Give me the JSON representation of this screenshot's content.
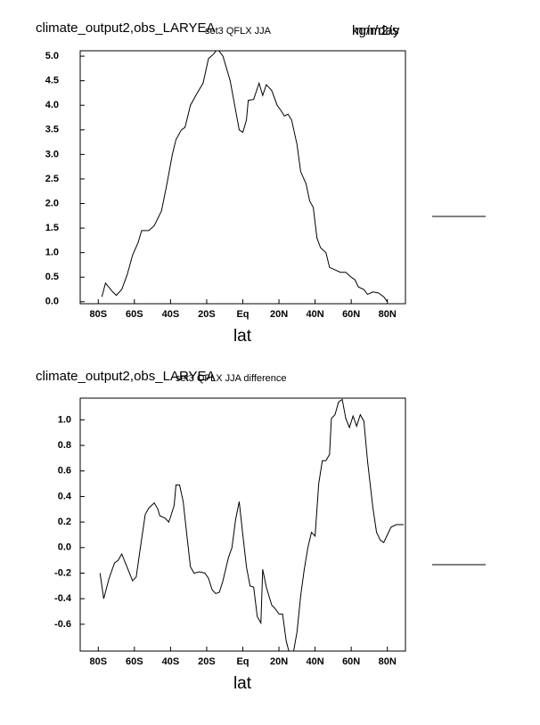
{
  "chart_data": [
    {
      "type": "line",
      "title": "climate_output2,obs_LARYEA",
      "subtitle": "set3 QFLX JJA",
      "units": [
        "mm/day",
        "kg/m2/s"
      ],
      "xlabel": "lat",
      "xlim": [
        -90,
        90
      ],
      "ylim": [
        -0.04,
        5.11
      ],
      "xticks": [
        {
          "value": -80,
          "label": "80S"
        },
        {
          "value": -60,
          "label": "60S"
        },
        {
          "value": -40,
          "label": "40S"
        },
        {
          "value": -20,
          "label": "20S"
        },
        {
          "value": 0,
          "label": "Eq"
        },
        {
          "value": 20,
          "label": "20N"
        },
        {
          "value": 40,
          "label": "40N"
        },
        {
          "value": 60,
          "label": "60N"
        },
        {
          "value": 80,
          "label": "80N"
        }
      ],
      "yticks": [
        {
          "value": 0,
          "label": "0.0"
        },
        0.5,
        {
          "value": 1,
          "label": "1.0"
        },
        1.5,
        {
          "value": 2,
          "label": "2.0"
        },
        2.5,
        {
          "value": 3,
          "label": "3.0"
        },
        3.5,
        {
          "value": 4,
          "label": "4.0"
        },
        4.5,
        {
          "value": 5,
          "label": "5.0"
        }
      ],
      "series": [
        {
          "color": "#000000",
          "x": [
            -78,
            -76,
            -72,
            -70,
            -67,
            -64,
            -61,
            -58,
            -56,
            -52,
            -49,
            -45,
            -42,
            -39,
            -37,
            -34,
            -32,
            -29,
            -26,
            -22,
            -19,
            -16,
            -14,
            -11,
            -7,
            -5,
            -2,
            0,
            2,
            3,
            6,
            9,
            11,
            13,
            16,
            19,
            21,
            23,
            25,
            27,
            30,
            32,
            35,
            37,
            39,
            41,
            43,
            46,
            48,
            51,
            54,
            57,
            60,
            62,
            64,
            67,
            69,
            72,
            75,
            78,
            80
          ],
          "values": [
            0.1,
            0.38,
            0.2,
            0.13,
            0.25,
            0.55,
            0.95,
            1.2,
            1.45,
            1.45,
            1.55,
            1.85,
            2.4,
            3.0,
            3.3,
            3.5,
            3.55,
            4.0,
            4.2,
            4.45,
            4.95,
            5.05,
            5.15,
            5.0,
            4.5,
            4.1,
            3.5,
            3.45,
            3.7,
            4.1,
            4.12,
            4.45,
            4.2,
            4.42,
            4.3,
            4.0,
            3.9,
            3.78,
            3.82,
            3.7,
            3.2,
            2.65,
            2.4,
            2.05,
            1.92,
            1.3,
            1.1,
            1.0,
            0.7,
            0.65,
            0.6,
            0.6,
            0.5,
            0.45,
            0.3,
            0.25,
            0.15,
            0.2,
            0.18,
            0.1,
            0.0
          ]
        }
      ]
    },
    {
      "type": "line",
      "title": "climate_output2,obs_LARYEA",
      "subtitle": "set3 QFLX JJA difference",
      "xlabel": "lat",
      "xlim": [
        -90,
        90
      ],
      "ylim": [
        -0.81,
        1.17
      ],
      "xticks": [
        {
          "value": -80,
          "label": "80S"
        },
        {
          "value": -60,
          "label": "60S"
        },
        {
          "value": -40,
          "label": "40S"
        },
        {
          "value": -20,
          "label": "20S"
        },
        {
          "value": 0,
          "label": "Eq"
        },
        {
          "value": 20,
          "label": "20N"
        },
        {
          "value": 40,
          "label": "40N"
        },
        {
          "value": 60,
          "label": "60N"
        },
        {
          "value": 80,
          "label": "80N"
        }
      ],
      "yticks": [
        -0.6,
        -0.4,
        -0.2,
        {
          "value": 0,
          "label": "0.0"
        },
        0.2,
        0.4,
        0.6,
        0.8,
        {
          "value": 1,
          "label": "1.0"
        }
      ],
      "series": [
        {
          "color": "#000000",
          "x": [
            -79,
            -77,
            -74,
            -71,
            -69,
            -67,
            -65,
            -61,
            -59,
            -57,
            -54,
            -52,
            -49,
            -47,
            -46,
            -43,
            -41,
            -40,
            -38,
            -37,
            -35,
            -33,
            -31,
            -29,
            -27,
            -24,
            -21,
            -19,
            -17,
            -15,
            -13,
            -11,
            -8,
            -6,
            -4,
            -2,
            0,
            2,
            4,
            6,
            8,
            10,
            11,
            13,
            16,
            18,
            20,
            22,
            24,
            26,
            28,
            30,
            32,
            34,
            36,
            38,
            40,
            42,
            44,
            46,
            48,
            49,
            51,
            53,
            55,
            57,
            59,
            61,
            63,
            65,
            67,
            69,
            72,
            74,
            76,
            78,
            80,
            82,
            85,
            89
          ],
          "values": [
            -0.2,
            -0.4,
            -0.24,
            -0.12,
            -0.1,
            -0.05,
            -0.12,
            -0.26,
            -0.23,
            -0.03,
            0.26,
            0.31,
            0.35,
            0.3,
            0.25,
            0.23,
            0.2,
            0.24,
            0.33,
            0.49,
            0.49,
            0.36,
            0.1,
            -0.15,
            -0.2,
            -0.19,
            -0.2,
            -0.24,
            -0.33,
            -0.36,
            -0.35,
            -0.26,
            -0.08,
            0.0,
            0.22,
            0.36,
            0.1,
            -0.15,
            -0.3,
            -0.31,
            -0.54,
            -0.59,
            -0.17,
            -0.31,
            -0.45,
            -0.48,
            -0.52,
            -0.52,
            -0.73,
            -0.84,
            -0.82,
            -0.66,
            -0.38,
            -0.17,
            0.0,
            0.12,
            0.09,
            0.5,
            0.68,
            0.68,
            0.73,
            1.01,
            1.04,
            1.14,
            1.16,
            1.01,
            0.94,
            1.03,
            0.95,
            1.04,
            0.99,
            0.68,
            0.31,
            0.12,
            0.06,
            0.04,
            0.1,
            0.16,
            0.18,
            0.18
          ]
        }
      ]
    }
  ]
}
